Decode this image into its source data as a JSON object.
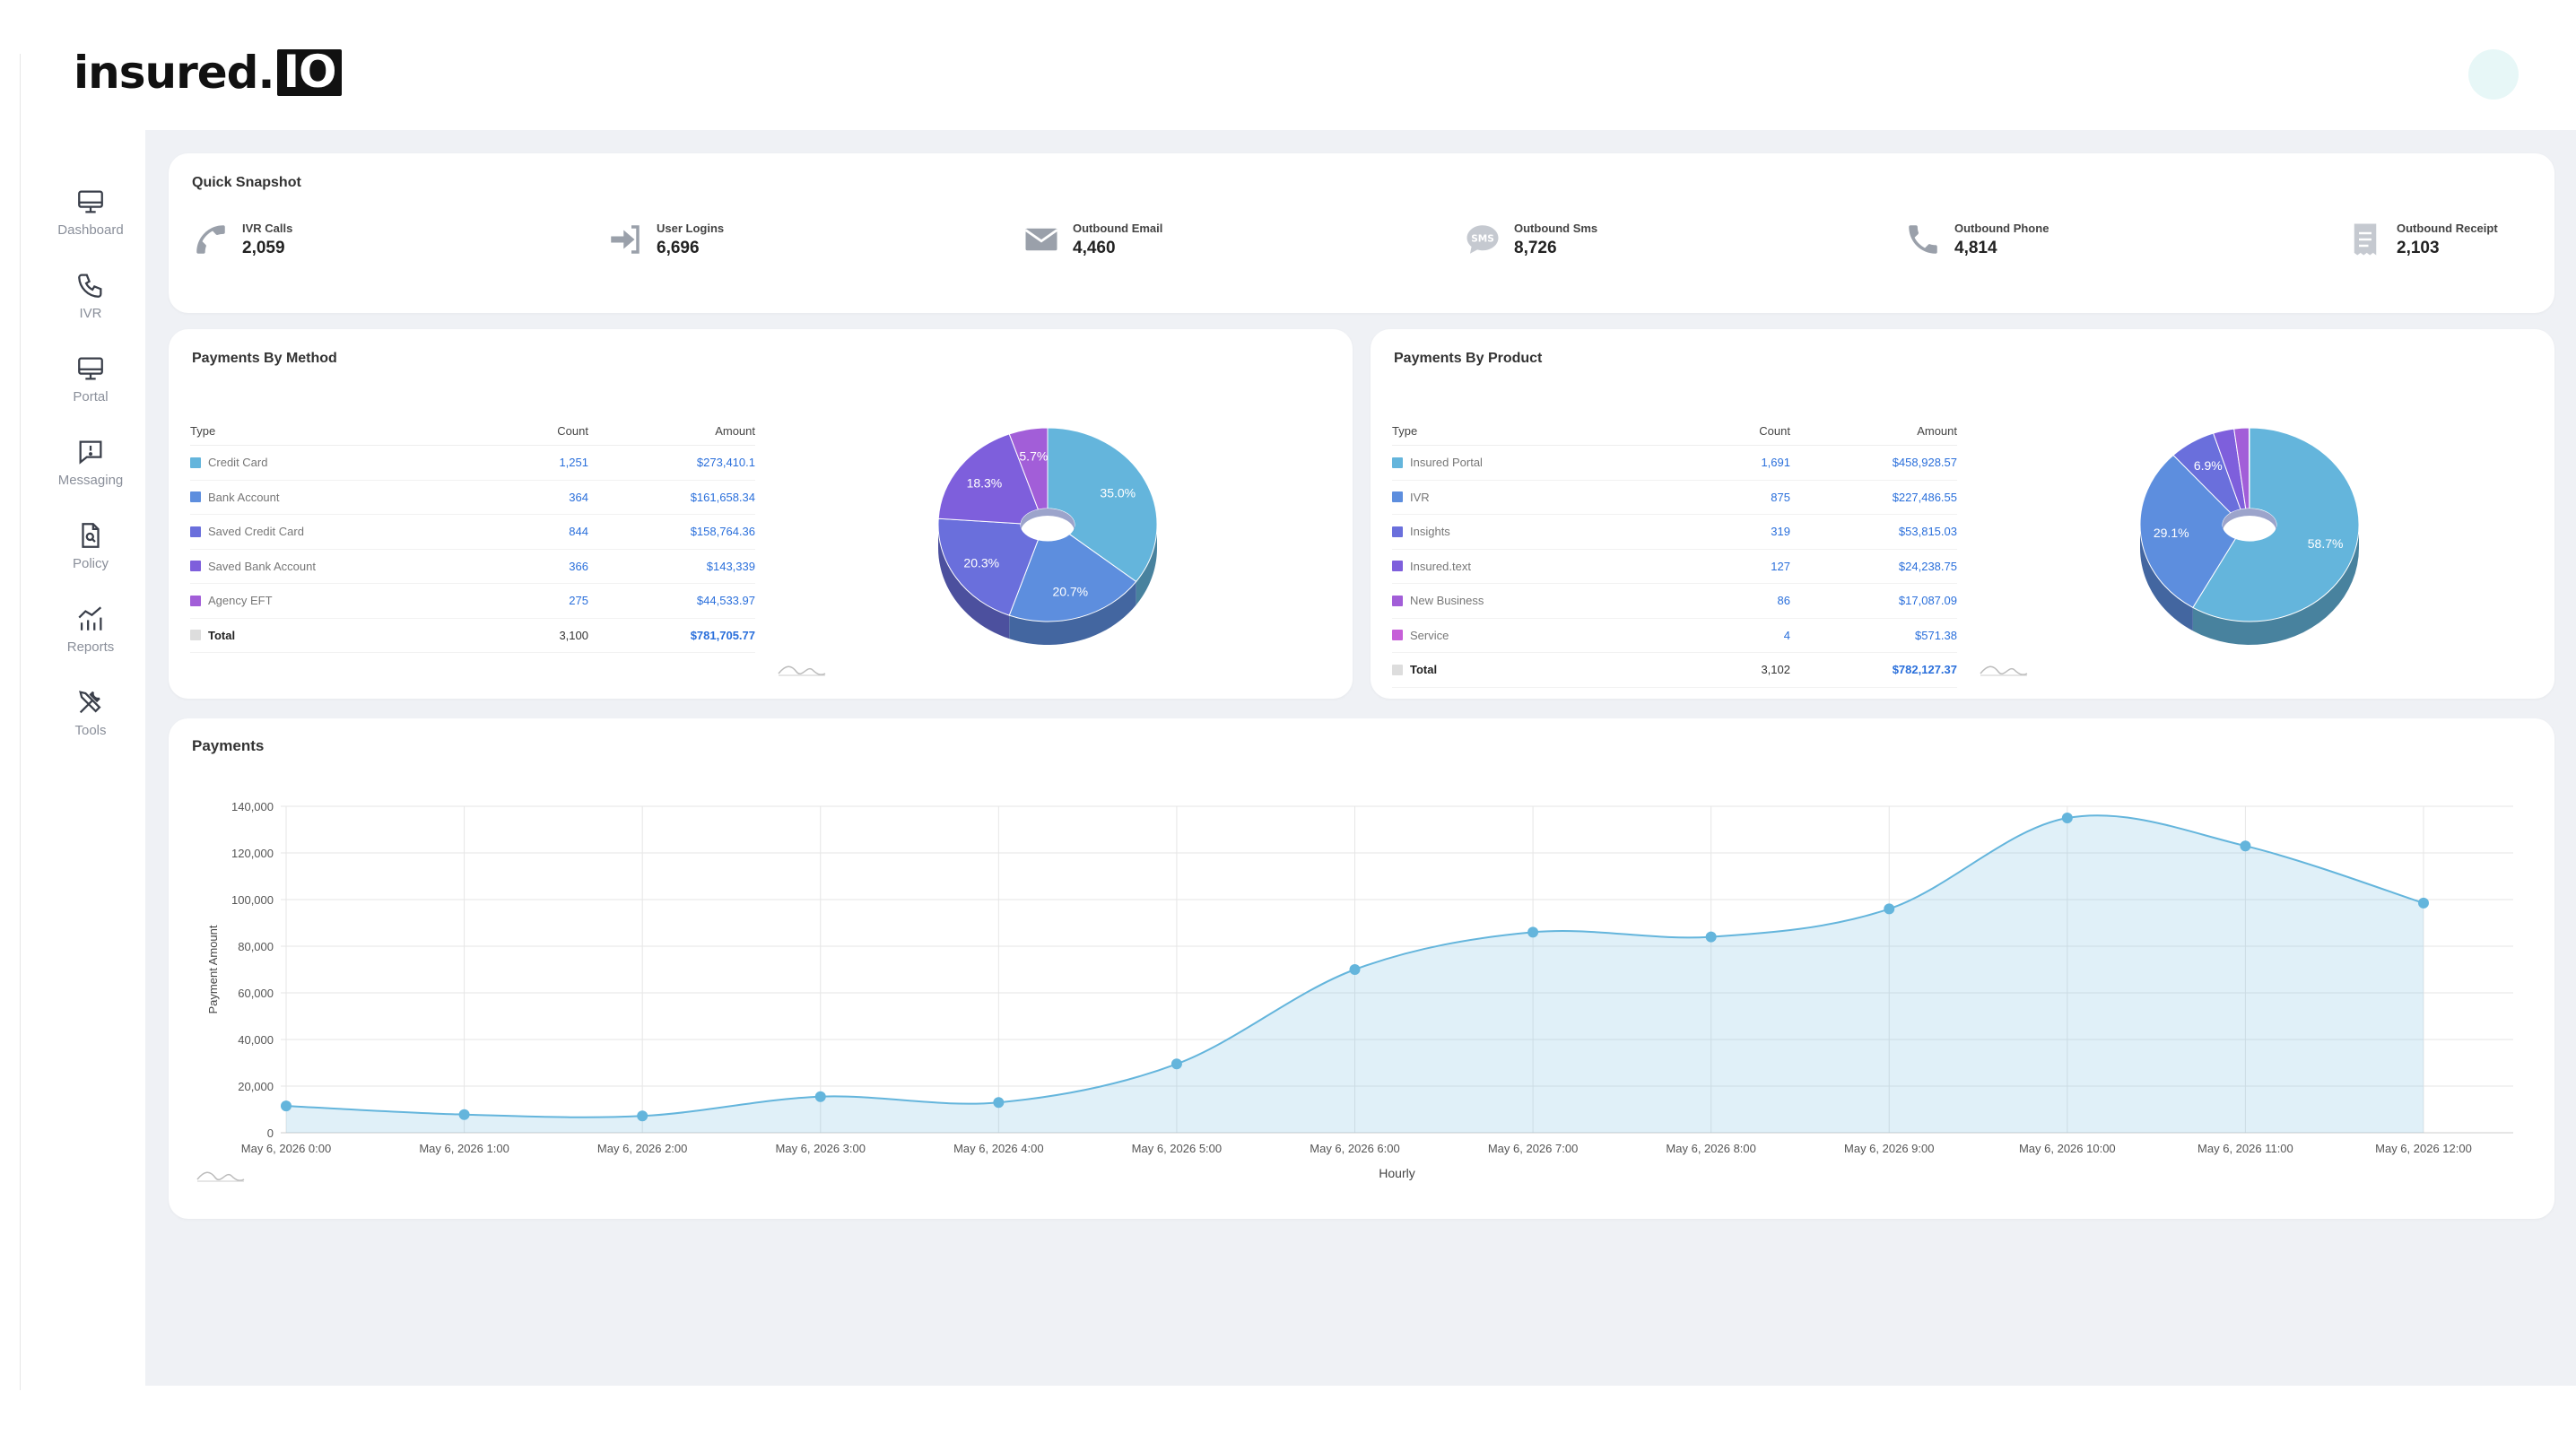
{
  "header": {
    "logo_text": "insured.",
    "logo_badge": "IO"
  },
  "sidebar": {
    "items": [
      {
        "label": "Dashboard",
        "icon": "monitor-icon"
      },
      {
        "label": "IVR",
        "icon": "phone-icon"
      },
      {
        "label": "Portal",
        "icon": "monitor-icon"
      },
      {
        "label": "Messaging",
        "icon": "message-alert-icon"
      },
      {
        "label": "Policy",
        "icon": "document-search-icon"
      },
      {
        "label": "Reports",
        "icon": "chart-icon"
      },
      {
        "label": "Tools",
        "icon": "tools-icon"
      }
    ]
  },
  "snapshot": {
    "title": "Quick Snapshot",
    "stats": [
      {
        "label": "IVR Calls",
        "value": "2,059",
        "icon": "phone-icon"
      },
      {
        "label": "User Logins",
        "value": "6,696",
        "icon": "login-icon"
      },
      {
        "label": "Outbound Email",
        "value": "4,460",
        "icon": "envelope-icon"
      },
      {
        "label": "Outbound Sms",
        "value": "8,726",
        "icon": "sms-icon"
      },
      {
        "label": "Outbound Phone",
        "value": "4,814",
        "icon": "phone-icon"
      },
      {
        "label": "Outbound Receipt",
        "value": "2,103",
        "icon": "receipt-icon"
      }
    ]
  },
  "payments_by_method": {
    "title": "Payments By Method",
    "headers": {
      "type": "Type",
      "count": "Count",
      "amount": "Amount"
    },
    "rows": [
      {
        "type": "Credit Card",
        "count": "1,251",
        "amount": "$273,410.1",
        "color": "#64b5dc"
      },
      {
        "type": "Bank Account",
        "count": "364",
        "amount": "$161,658.34",
        "color": "#5d8ede"
      },
      {
        "type": "Saved Credit Card",
        "count": "844",
        "amount": "$158,764.36",
        "color": "#6a6fdc"
      },
      {
        "type": "Saved Bank Account",
        "count": "366",
        "amount": "$143,339",
        "color": "#7e5fdc"
      },
      {
        "type": "Agency EFT",
        "count": "275",
        "amount": "$44,533.97",
        "color": "#a25ed8"
      }
    ],
    "total": {
      "type": "Total",
      "count": "3,100",
      "amount": "$781,705.77",
      "color": "#dddddd"
    }
  },
  "payments_by_product": {
    "title": "Payments By Product",
    "headers": {
      "type": "Type",
      "count": "Count",
      "amount": "Amount"
    },
    "rows": [
      {
        "type": "Insured Portal",
        "count": "1,691",
        "amount": "$458,928.57",
        "color": "#64b5dc"
      },
      {
        "type": "IVR",
        "count": "875",
        "amount": "$227,486.55",
        "color": "#5d8ede"
      },
      {
        "type": "Insights",
        "count": "319",
        "amount": "$53,815.03",
        "color": "#6a6fdc"
      },
      {
        "type": "Insured.text",
        "count": "127",
        "amount": "$24,238.75",
        "color": "#7e5fdc"
      },
      {
        "type": "New Business",
        "count": "86",
        "amount": "$17,087.09",
        "color": "#a25ed8"
      },
      {
        "type": "Service",
        "count": "4",
        "amount": "$571.38",
        "color": "#c65fd8"
      }
    ],
    "total": {
      "type": "Total",
      "count": "3,102",
      "amount": "$782,127.37",
      "color": "#dddddd"
    }
  },
  "chart_data": [
    {
      "type": "pie",
      "title": "Payments By Method",
      "categories": [
        "Credit Card",
        "Bank Account",
        "Saved Credit Card",
        "Saved Bank Account",
        "Agency EFT"
      ],
      "values": [
        35.0,
        20.7,
        20.3,
        18.3,
        5.7
      ],
      "labels": [
        "35.0%",
        "20.7%",
        "20.3%",
        "18.3%",
        "5.7%"
      ],
      "colors": [
        "#64b5dc",
        "#5d8ede",
        "#6a6fdc",
        "#7e5fdc",
        "#a25ed8"
      ]
    },
    {
      "type": "pie",
      "title": "Payments By Product",
      "categories": [
        "Insured Portal",
        "IVR",
        "Insights",
        "Insured.text",
        "New Business",
        "Service"
      ],
      "values": [
        58.7,
        29.1,
        6.9,
        3.1,
        2.2,
        0.07
      ],
      "labels": [
        "58.7%",
        "29.1%",
        "6.9%",
        "",
        "",
        ""
      ],
      "colors": [
        "#64b5dc",
        "#5d8ede",
        "#6a6fdc",
        "#7e5fdc",
        "#a25ed8",
        "#c65fd8"
      ]
    },
    {
      "type": "area",
      "title": "Payments",
      "xlabel": "Hourly",
      "ylabel": "Payment Amount",
      "ylim": [
        0,
        140000
      ],
      "yticks": [
        0,
        20000,
        40000,
        60000,
        80000,
        100000,
        120000,
        140000
      ],
      "ytick_labels": [
        "0",
        "20,000",
        "40,000",
        "60,000",
        "80,000",
        "100,000",
        "120,000",
        "140,000"
      ],
      "categories": [
        "May 6, 2026 0:00",
        "May 6, 2026 1:00",
        "May 6, 2026 2:00",
        "May 6, 2026 3:00",
        "May 6, 2026 4:00",
        "May 6, 2026 5:00",
        "May 6, 2026 6:00",
        "May 6, 2026 7:00",
        "May 6, 2026 8:00",
        "May 6, 2026 9:00",
        "May 6, 2026 10:00",
        "May 6, 2026 11:00",
        "May 6, 2026 12:00"
      ],
      "values": [
        11500,
        7800,
        7200,
        15500,
        13000,
        29500,
        70000,
        86000,
        84000,
        96000,
        135000,
        123000,
        98500
      ],
      "color": "#64b5dc",
      "grid": true
    }
  ]
}
